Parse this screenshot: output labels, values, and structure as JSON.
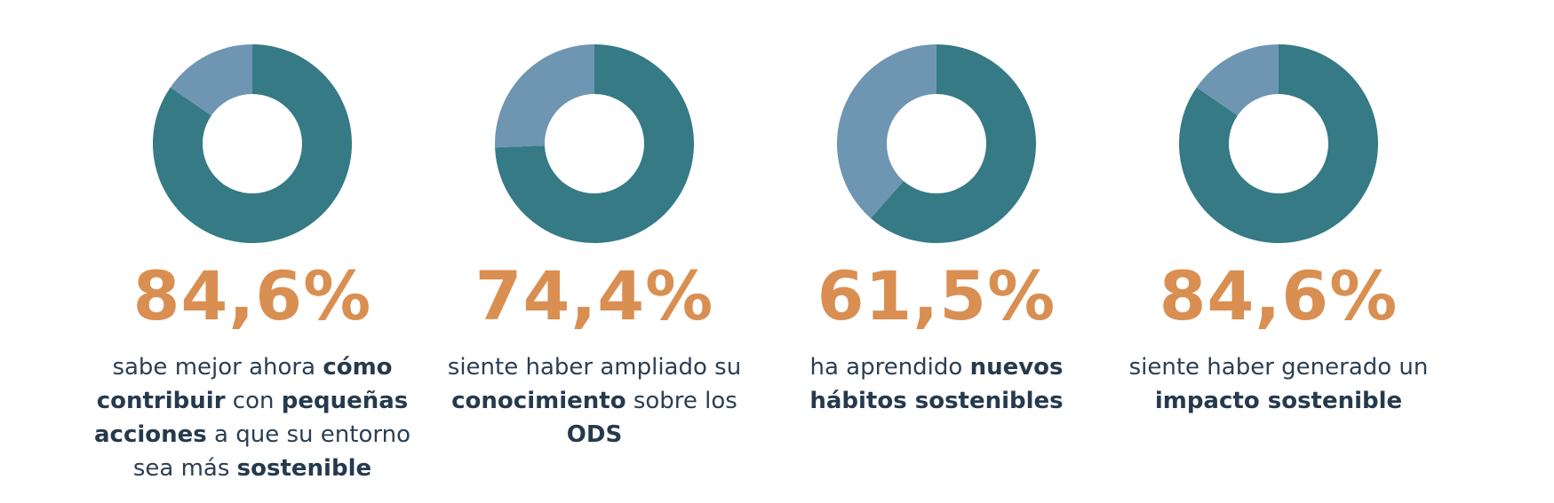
{
  "colors": {
    "primary": "#357a85",
    "secondary": "#6e96b2",
    "accent": "#d98f52",
    "text": "#2b3f52"
  },
  "chart_data": [
    {
      "type": "pie",
      "style": "donut",
      "value_label": "84,6%",
      "slices": [
        {
          "value": 84.6,
          "color": "#357a85"
        },
        {
          "value": 15.4,
          "color": "#6e96b2"
        }
      ],
      "description": [
        {
          "text": "sabe mejor ahora ",
          "bold": false
        },
        {
          "text": "cómo contribuir",
          "bold": true
        },
        {
          "text": " con ",
          "bold": false
        },
        {
          "text": "pequeñas acciones",
          "bold": true
        },
        {
          "text": " a que su entorno sea más ",
          "bold": false
        },
        {
          "text": "sostenible",
          "bold": true
        }
      ]
    },
    {
      "type": "pie",
      "style": "donut",
      "value_label": "74,4%",
      "slices": [
        {
          "value": 74.4,
          "color": "#357a85"
        },
        {
          "value": 25.6,
          "color": "#6e96b2"
        }
      ],
      "description": [
        {
          "text": "siente haber ampliado su ",
          "bold": false
        },
        {
          "text": "conocimiento",
          "bold": true
        },
        {
          "text": " sobre los ",
          "bold": false
        },
        {
          "text": "ODS",
          "bold": true
        }
      ]
    },
    {
      "type": "pie",
      "style": "donut",
      "value_label": "61,5%",
      "slices": [
        {
          "value": 61.5,
          "color": "#357a85"
        },
        {
          "value": 38.5,
          "color": "#6e96b2"
        }
      ],
      "description": [
        {
          "text": "ha aprendido ",
          "bold": false
        },
        {
          "text": "nuevos hábitos sostenibles",
          "bold": true
        }
      ]
    },
    {
      "type": "pie",
      "style": "donut",
      "value_label": "84,6%",
      "slices": [
        {
          "value": 84.6,
          "color": "#357a85"
        },
        {
          "value": 15.4,
          "color": "#6e96b2"
        }
      ],
      "description": [
        {
          "text": "siente haber generado un ",
          "bold": false
        },
        {
          "text": "impacto sostenible",
          "bold": true
        }
      ]
    }
  ]
}
